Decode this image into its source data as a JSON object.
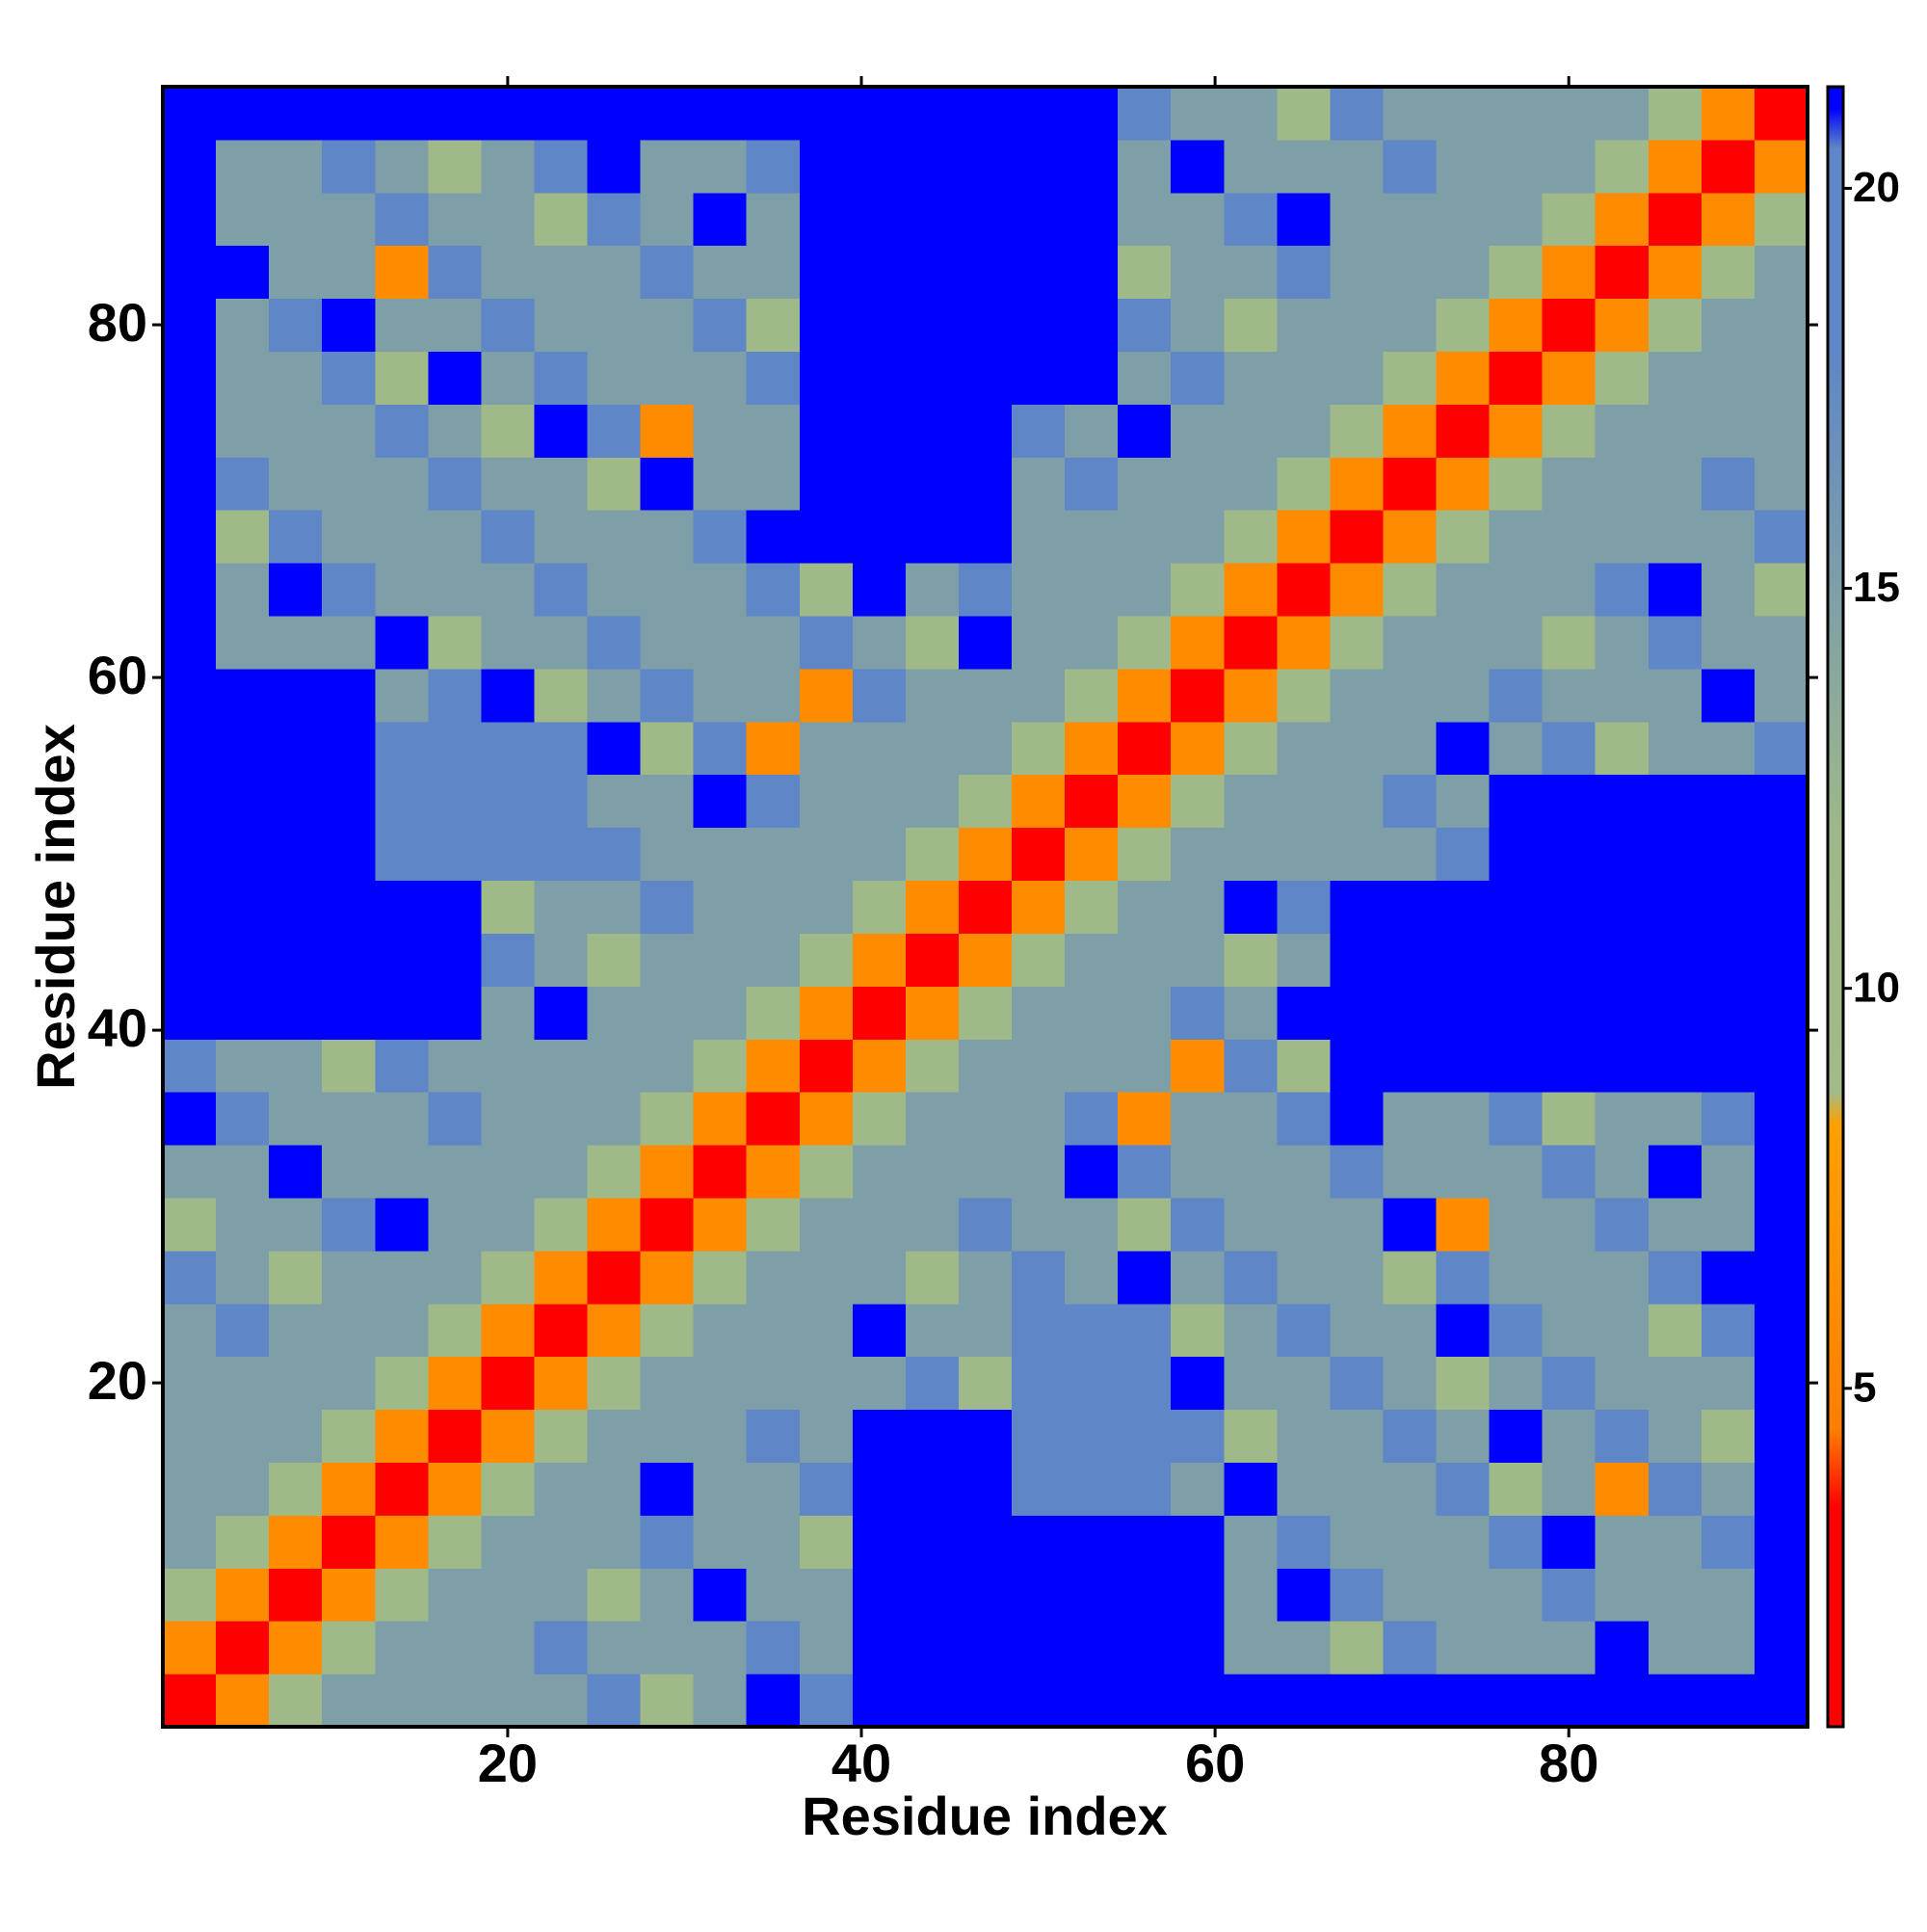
{
  "chart_data": {
    "type": "heatmap",
    "xlabel": "Residue index",
    "ylabel": "Residue index",
    "x": [
      2,
      5,
      8,
      11,
      14,
      17,
      20,
      23,
      26,
      29,
      32,
      35,
      38,
      41,
      44,
      47,
      50,
      53,
      56,
      59,
      62,
      65,
      68,
      71,
      74,
      77,
      80,
      83,
      86,
      89,
      92
    ],
    "y": [
      2,
      5,
      8,
      11,
      14,
      17,
      20,
      23,
      26,
      29,
      32,
      35,
      38,
      41,
      44,
      47,
      50,
      53,
      56,
      59,
      62,
      65,
      68,
      71,
      74,
      77,
      80,
      83,
      86,
      89,
      92
    ],
    "values": [
      [
        2,
        6,
        11,
        15,
        15,
        15,
        15,
        15,
        18,
        11,
        15,
        22,
        18,
        22,
        22,
        22,
        22,
        22,
        22,
        22,
        22,
        22,
        22,
        22,
        22,
        22,
        22,
        22,
        22,
        22,
        22
      ],
      [
        2,
        6,
        11,
        15,
        15,
        15,
        18,
        15,
        15,
        15,
        18,
        15,
        22,
        22,
        22,
        22,
        22,
        22,
        22,
        15,
        15,
        11,
        18,
        15,
        15,
        15,
        22,
        15,
        15,
        22
      ],
      [
        2,
        6,
        11,
        15,
        15,
        15,
        11,
        15,
        22,
        15,
        15,
        22,
        22,
        22,
        22,
        22,
        22,
        22,
        15,
        22,
        18,
        15,
        15,
        15,
        18,
        15,
        15,
        15,
        22
      ],
      [
        2,
        6,
        11,
        15,
        15,
        15,
        18,
        15,
        15,
        11,
        22,
        22,
        22,
        22,
        22,
        22,
        22,
        15,
        18,
        15,
        15,
        15,
        18,
        22,
        15,
        15,
        18,
        22
      ],
      [
        2,
        6,
        11,
        15,
        15,
        22,
        15,
        15,
        18,
        22,
        22,
        22,
        18,
        18,
        18,
        15,
        22,
        15,
        15,
        15,
        18,
        11,
        15,
        6,
        18,
        15,
        22
      ],
      [
        2,
        6,
        11,
        15,
        15,
        15,
        18,
        15,
        22,
        22,
        22,
        18,
        18,
        18,
        18,
        11,
        15,
        15,
        18,
        15,
        22,
        15,
        18,
        15,
        11,
        22
      ],
      [
        2,
        6,
        11,
        15,
        15,
        15,
        15,
        15,
        18,
        11,
        18,
        18,
        18,
        22,
        15,
        15,
        18,
        15,
        11,
        15,
        18,
        15,
        15,
        15,
        22
      ],
      [
        2,
        6,
        11,
        15,
        15,
        15,
        22,
        15,
        15,
        18,
        18,
        18,
        11,
        15,
        18,
        15,
        15,
        22,
        18,
        15,
        15,
        11,
        18,
        22
      ],
      [
        2,
        6,
        11,
        15,
        15,
        15,
        11,
        15,
        18,
        15,
        22,
        15,
        18,
        15,
        15,
        11,
        18,
        15,
        15,
        15,
        18,
        22,
        22
      ],
      [
        2,
        6,
        11,
        15,
        15,
        15,
        18,
        15,
        15,
        11,
        18,
        15,
        15,
        15,
        22,
        6,
        15,
        15,
        18,
        15,
        15,
        22
      ],
      [
        2,
        6,
        11,
        15,
        15,
        15,
        15,
        22,
        18,
        15,
        15,
        15,
        18,
        15,
        15,
        15,
        18,
        15,
        22,
        15,
        22
      ],
      [
        2,
        6,
        11,
        15,
        15,
        15,
        18,
        6,
        15,
        15,
        18,
        22,
        15,
        15,
        18,
        11,
        15,
        15,
        18,
        22
      ],
      [
        2,
        6,
        11,
        15,
        15,
        15,
        15,
        6,
        18,
        11,
        22,
        22,
        22,
        22,
        22,
        22,
        22,
        22,
        22
      ],
      [
        2,
        6,
        11,
        15,
        15,
        15,
        18,
        15,
        22,
        22,
        22,
        22,
        22,
        22,
        22,
        22,
        22,
        22
      ],
      [
        2,
        6,
        11,
        15,
        15,
        15,
        11,
        15,
        22,
        22,
        22,
        22,
        22,
        22,
        22,
        22,
        22
      ],
      [
        2,
        6,
        11,
        15,
        15,
        22,
        18,
        22,
        22,
        22,
        22,
        22,
        22,
        22,
        22,
        22
      ],
      [
        2,
        6,
        11,
        15,
        15,
        15,
        15,
        15,
        18,
        22,
        22,
        22,
        22,
        22,
        22
      ],
      [
        2,
        6,
        11,
        15,
        15,
        15,
        18,
        15,
        22,
        22,
        22,
        22,
        22,
        22
      ],
      [
        2,
        6,
        11,
        15,
        15,
        15,
        22,
        15,
        18,
        11,
        15,
        15,
        18
      ],
      [
        2,
        6,
        11,
        15,
        15,
        15,
        18,
        15,
        15,
        15,
        22,
        15
      ],
      [
        2,
        6,
        11,
        15,
        15,
        15,
        11,
        15,
        18,
        15,
        15
      ],
      [
        2,
        6,
        11,
        15,
        15,
        15,
        18,
        22,
        15,
        11
      ],
      [
        2,
        6,
        11,
        15,
        15,
        15,
        15,
        15,
        18
      ],
      [
        2,
        6,
        11,
        15,
        15,
        15,
        18,
        15
      ],
      [
        2,
        6,
        11,
        15,
        15,
        15,
        15
      ],
      [
        2,
        6,
        11,
        15,
        15,
        15
      ],
      [
        2,
        6,
        11,
        15,
        15
      ],
      [
        2,
        6,
        11,
        15
      ],
      [
        2,
        6,
        11
      ],
      [
        2,
        6
      ],
      [
        2
      ]
    ],
    "xlim": [
      0.5,
      93.5
    ],
    "ylim": [
      0.5,
      93.5
    ],
    "xticks": [
      20,
      40,
      60,
      80
    ],
    "yticks": [
      20,
      40,
      60,
      80
    ],
    "colorscale": [
      [
        0.77,
        "#ff0000"
      ],
      [
        3.5,
        "#ff0000"
      ],
      [
        4.5,
        "#ff7f00"
      ],
      [
        8.3,
        "#ffa000"
      ],
      [
        8.7,
        "#a3bb88"
      ],
      [
        12,
        "#9db88a"
      ],
      [
        18,
        "#5f86c6"
      ],
      [
        20.5,
        "#5f86c6"
      ],
      [
        21,
        "#0000ff"
      ]
    ],
    "colorbar": {
      "lim": [
        0.77,
        21.27
      ],
      "ticks": [
        5,
        10,
        15,
        20
      ]
    }
  }
}
